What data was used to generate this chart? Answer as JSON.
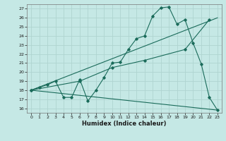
{
  "title": "",
  "xlabel": "Humidex (Indice chaleur)",
  "background_color": "#c5e8e5",
  "grid_color": "#afd4d0",
  "line_color": "#1a6b5a",
  "xlim": [
    -0.5,
    23.5
  ],
  "ylim": [
    15.5,
    27.5
  ],
  "xticks": [
    0,
    1,
    2,
    3,
    4,
    5,
    6,
    7,
    8,
    9,
    10,
    11,
    12,
    13,
    14,
    15,
    16,
    17,
    18,
    19,
    20,
    21,
    22,
    23
  ],
  "yticks": [
    16,
    17,
    18,
    19,
    20,
    21,
    22,
    23,
    24,
    25,
    26,
    27
  ],
  "series1_x": [
    0,
    1,
    2,
    3,
    4,
    5,
    6,
    7,
    8,
    9,
    10,
    11,
    12,
    13,
    14,
    15,
    16,
    17,
    18,
    19,
    20,
    21,
    22,
    23
  ],
  "series1_y": [
    18.0,
    18.3,
    18.6,
    19.0,
    17.2,
    17.2,
    19.2,
    16.8,
    18.0,
    19.4,
    21.0,
    21.1,
    22.5,
    23.7,
    24.0,
    26.2,
    27.1,
    27.2,
    25.3,
    25.8,
    23.2,
    20.9,
    17.2,
    15.8
  ],
  "series2_x": [
    0,
    23
  ],
  "series2_y": [
    18.0,
    26.0
  ],
  "series3_x": [
    0,
    23
  ],
  "series3_y": [
    18.0,
    15.8
  ],
  "series4_x": [
    0,
    6,
    10,
    14,
    19,
    22
  ],
  "series4_y": [
    18.0,
    19.0,
    20.5,
    21.3,
    22.5,
    25.8
  ]
}
